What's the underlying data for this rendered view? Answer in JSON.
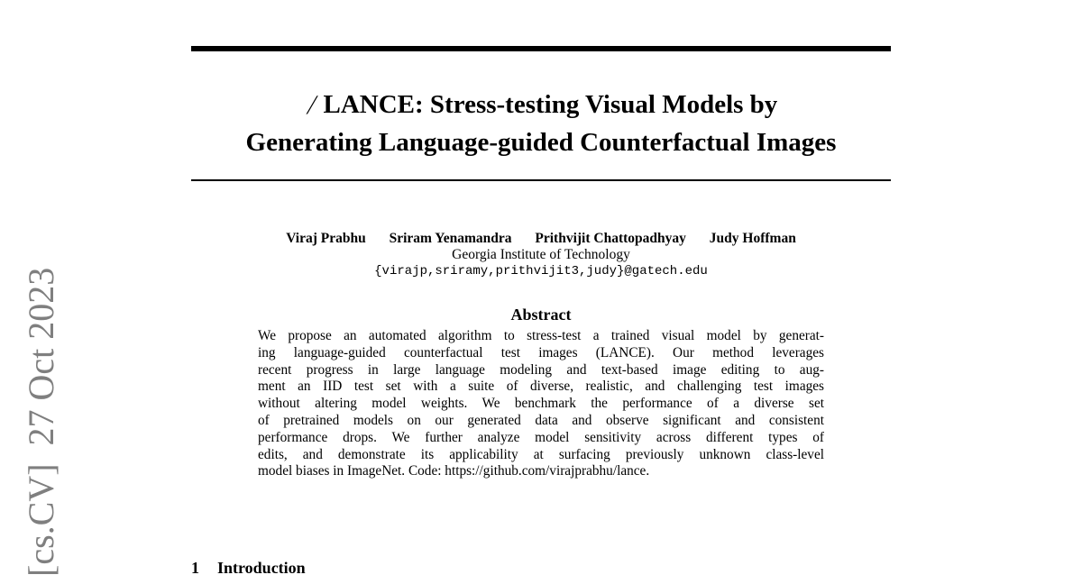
{
  "arxiv_stamp": {
    "category": "[cs.CV]",
    "date": "27 Oct 2023"
  },
  "title": {
    "logo_icon": "lance-icon",
    "line1": "LANCE: Stress-testing Visual Models by",
    "line2": "Generating Language-guided Counterfactual Images"
  },
  "authors": {
    "names": [
      "Viraj Prabhu",
      "Sriram Yenamandra",
      "Prithvijit Chattopadhyay",
      "Judy Hoffman"
    ],
    "affiliation": "Georgia Institute of Technology",
    "email": "{virajp,sriramy,prithvijit3,judy}@gatech.edu"
  },
  "abstract": {
    "heading": "Abstract",
    "lines": [
      "We propose an automated algorithm to stress-test a trained visual model by generat-",
      "ing language-guided counterfactual test images (LANCE). Our method leverages",
      "recent progress in large language modeling and text-based image editing to aug-",
      "ment an IID test set with a suite of diverse, realistic, and challenging test images",
      "without altering model weights. We benchmark the performance of a diverse set",
      "of pretrained models on our generated data and observe significant and consistent",
      "performance drops. We further analyze model sensitivity across different types of",
      "edits, and demonstrate its applicability at surfacing previously unknown class-level",
      "model biases in ImageNet. Code: https://github.com/virajprabhu/lance."
    ]
  },
  "section": {
    "number": "1",
    "title": "Introduction"
  }
}
